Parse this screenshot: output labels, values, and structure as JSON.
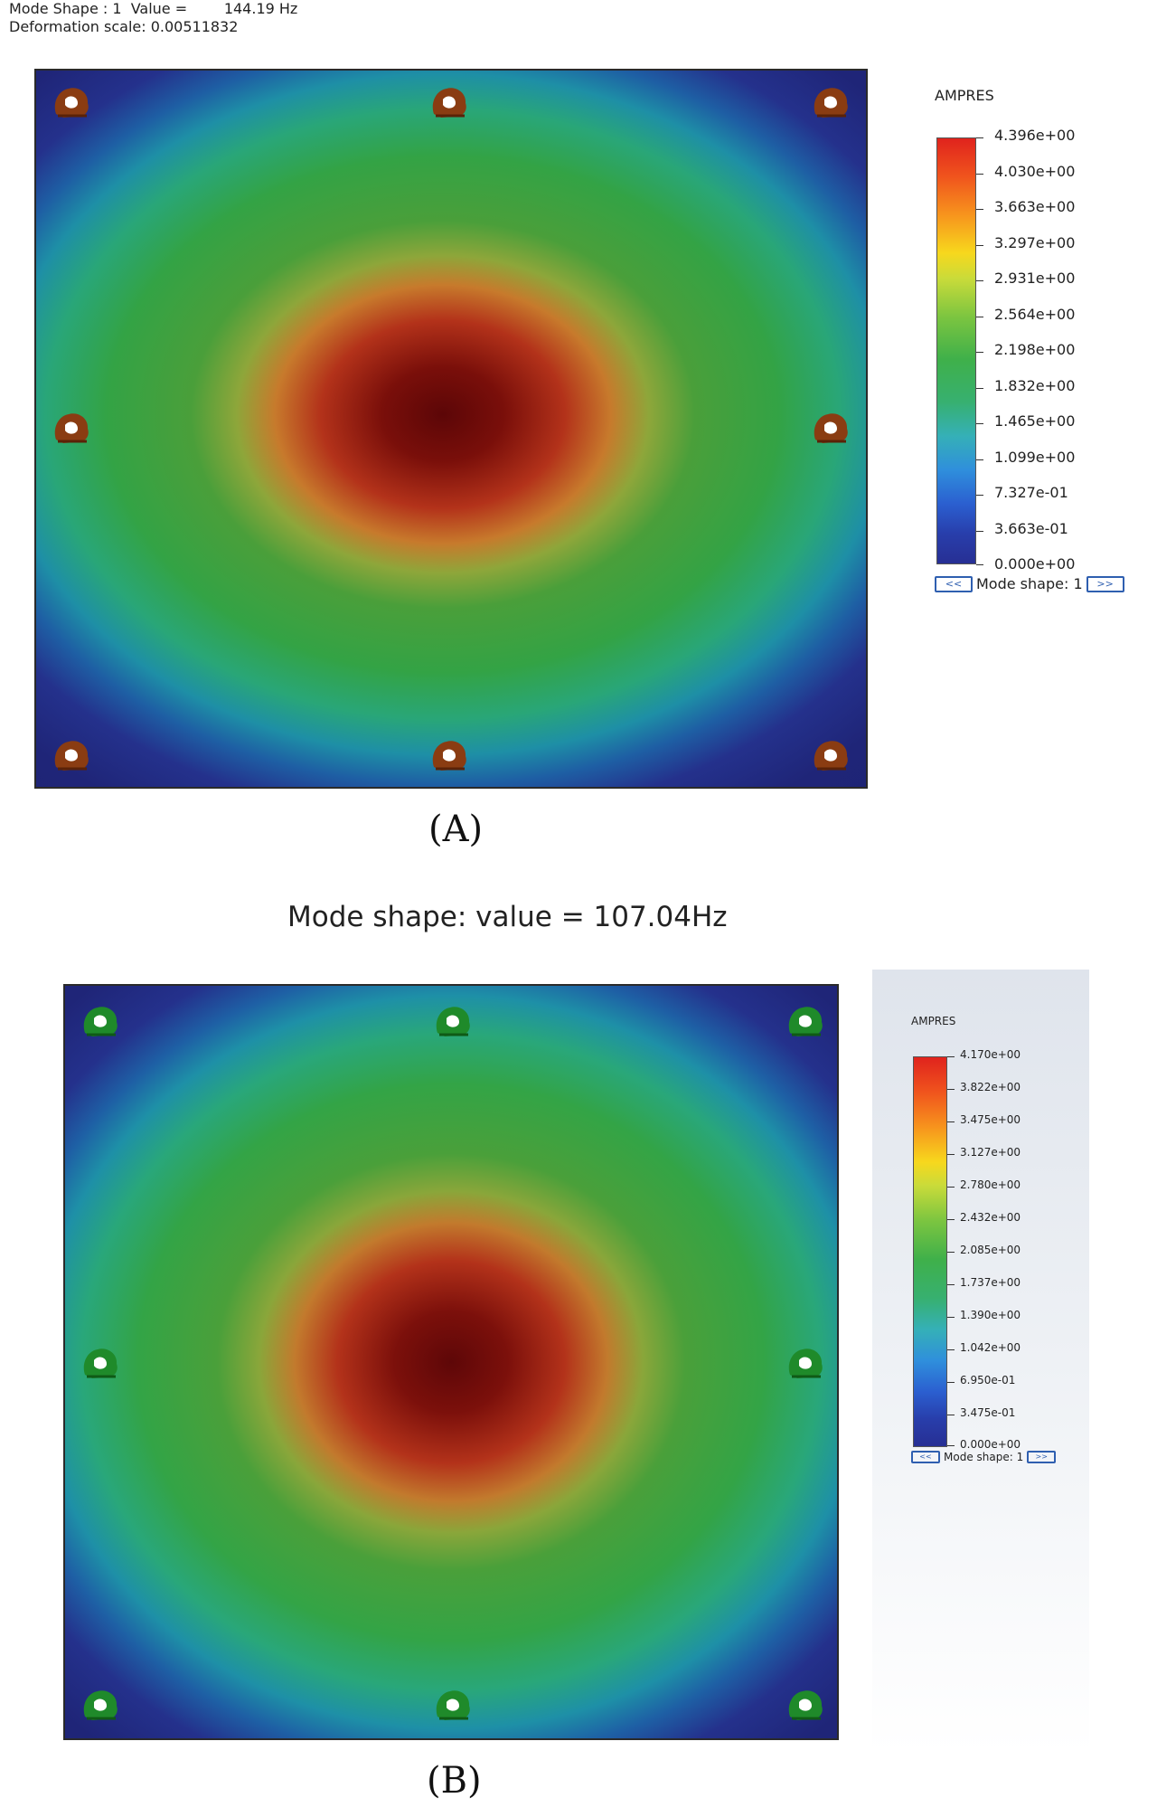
{
  "panel_a": {
    "mode_line": "Mode Shape : 1  Value =        144.19 Hz",
    "deformation_line": "Deformation scale: 0.00511832",
    "legend": {
      "title": "AMPRES",
      "ticks": [
        "4.396e+00",
        "4.030e+00",
        "3.663e+00",
        "3.297e+00",
        "2.931e+00",
        "2.564e+00",
        "2.198e+00",
        "1.832e+00",
        "1.465e+00",
        "1.099e+00",
        "7.327e-01",
        "3.663e-01",
        "0.000e+00"
      ],
      "nav_prev": "<<",
      "nav_label": "Mode shape: 1",
      "nav_next": ">>"
    },
    "fixture_icon": "fixed-geometry-icon",
    "fixture_color": "#8a3c12",
    "caption": "(A)"
  },
  "panel_b": {
    "title": "Mode shape: value = 107.04Hz",
    "legend": {
      "title": "AMPRES",
      "ticks": [
        "4.170e+00",
        "3.822e+00",
        "3.475e+00",
        "3.127e+00",
        "2.780e+00",
        "2.432e+00",
        "2.085e+00",
        "1.737e+00",
        "1.390e+00",
        "1.042e+00",
        "6.950e-01",
        "3.475e-01",
        "0.000e+00"
      ],
      "nav_prev": "<<",
      "nav_label": "Mode shape: 1",
      "nav_next": ">>"
    },
    "fixture_icon": "fixed-geometry-icon",
    "fixture_color": "#1f8a2a",
    "caption": "(B)"
  }
}
